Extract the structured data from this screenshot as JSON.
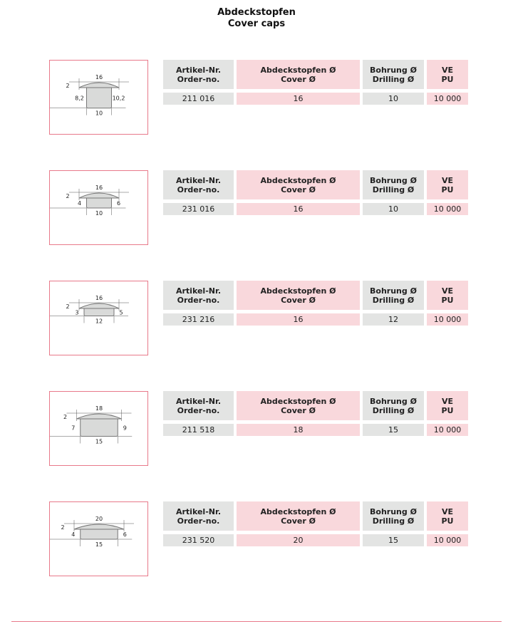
{
  "title": {
    "line1": "Abdeckstopfen",
    "line2": "Cover caps"
  },
  "headers": {
    "order": [
      "Artikel-Nr.",
      "Order-no."
    ],
    "cover": [
      "Abdeckstopfen Ø",
      "Cover Ø"
    ],
    "drilling": [
      "Bohrung Ø",
      "Drilling Ø"
    ],
    "pu": [
      "VE",
      "PU"
    ]
  },
  "colors": {
    "header_gray": "#e3e4e3",
    "header_pink": "#f9d8dc",
    "border_pink": "#e8798a"
  },
  "products": [
    {
      "order_no": "211 016",
      "cover": "16",
      "drilling": "10",
      "pu": "10 000",
      "drawing": {
        "top": "16",
        "dome": "2",
        "left": "8,2",
        "right": "10,2",
        "bottom": "10"
      }
    },
    {
      "order_no": "231 016",
      "cover": "16",
      "drilling": "10",
      "pu": "10 000",
      "drawing": {
        "top": "16",
        "dome": "2",
        "left": "4",
        "right": "6",
        "bottom": "10"
      }
    },
    {
      "order_no": "231 216",
      "cover": "16",
      "drilling": "12",
      "pu": "10 000",
      "drawing": {
        "top": "16",
        "dome": "2",
        "left": "3",
        "right": "5",
        "bottom": "12"
      }
    },
    {
      "order_no": "211 518",
      "cover": "18",
      "drilling": "15",
      "pu": "10 000",
      "drawing": {
        "top": "18",
        "dome": "2",
        "left": "7",
        "right": "9",
        "bottom": "15"
      }
    },
    {
      "order_no": "231 520",
      "cover": "20",
      "drilling": "15",
      "pu": "10 000",
      "drawing": {
        "top": "20",
        "dome": "2",
        "left": "4",
        "right": "6",
        "bottom": "15"
      }
    }
  ]
}
